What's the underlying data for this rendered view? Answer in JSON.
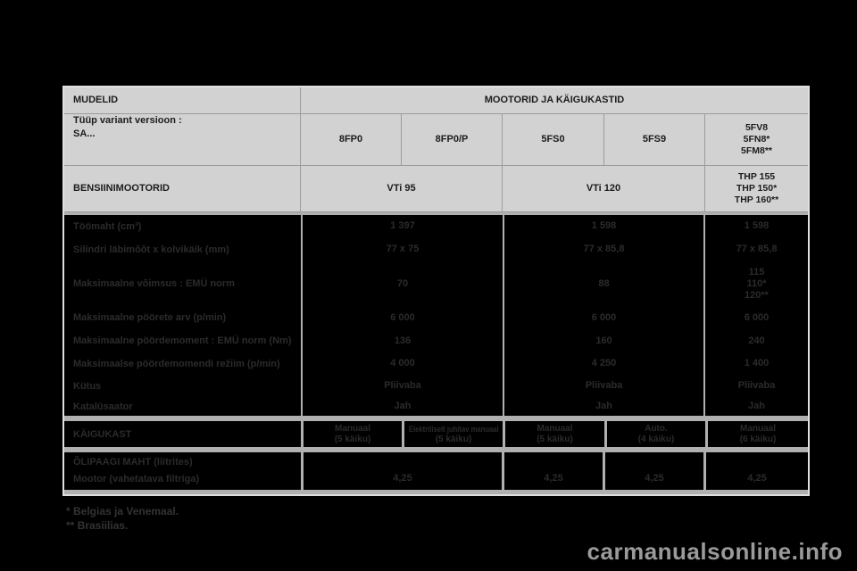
{
  "colors": {
    "page_bg": "#000000",
    "header_cell_bg": "#d2d2d2",
    "grid_line": "#9b9b9b",
    "separator_band": "#b0b0b0",
    "header_text": "#1c1c1c",
    "body_text": "#2b2b2b",
    "watermark_text": "#9a9a9a"
  },
  "table": {
    "header": {
      "models_label": "MUDELID",
      "engines_gearboxes_label": "MOOTORID JA KÄIGUKASTID",
      "type_variant_label": "Tüüp variant versioon :",
      "type_variant_sub": "SA...",
      "variant_codes": [
        "8FP0",
        "8FP0/P",
        "5FS0",
        "5FS9"
      ],
      "variant_codes_multi": [
        "5FV8",
        "5FN8*",
        "5FM8**"
      ],
      "petrol_label": "BENSIINIMOOTORID",
      "engine_names": [
        "VTi 95",
        "VTi 120"
      ],
      "engine_names_multi": [
        "THP 155",
        "THP 150*",
        "THP 160**"
      ]
    },
    "spec_rows": [
      {
        "label": "Töömaht (cm³)",
        "vti95": "1 397",
        "vti120": "1 598",
        "thp": [
          "1 598"
        ]
      },
      {
        "label": "Silindri läbimõõt x kolvikäik (mm)",
        "vti95": "77 x 75",
        "vti120": "77 x 85,8",
        "thp": [
          "77 x 85,8"
        ]
      },
      {
        "label": "Maksimaalne võimsus : EMÜ norm",
        "vti95": "70",
        "vti120": "88",
        "thp": [
          "115",
          "110*",
          "120**"
        ]
      },
      {
        "label": "Maksimaalne pöörete arv (p/min)",
        "vti95": "6 000",
        "vti120": "6 000",
        "thp": [
          "6 000"
        ]
      },
      {
        "label": "Maksimaalne pöördemoment : EMÜ norm (Nm)",
        "vti95": "136",
        "vti120": "160",
        "thp": [
          "240"
        ]
      },
      {
        "label": "Maksimaalse pöördemomendi režiim (p/min)",
        "vti95": "4 000",
        "vti120": "4 250",
        "thp": [
          "1 400"
        ]
      },
      {
        "label": "Kütus",
        "vti95": "Pliivaba",
        "vti120": "Pliivaba",
        "thp": [
          "Pliivaba"
        ]
      },
      {
        "label": "Katalüsaator",
        "vti95": "Jah",
        "vti120": "Jah",
        "thp": [
          "Jah"
        ]
      }
    ],
    "gearbox": {
      "label": "KÄIGUKAST",
      "cells": [
        [
          "Manuaal",
          "(5 käiku)"
        ],
        [
          "Elektriliselt juhitav manuaal",
          "(5 käiku)"
        ],
        [
          "Manuaal",
          "(5 käiku)"
        ],
        [
          "Auto.",
          "(4 käiku)"
        ],
        [
          "Manuaal",
          "(6 käiku)"
        ]
      ]
    },
    "oil": {
      "title": "ÕLIPAAGI MAHT (liitrites)",
      "row_label": "Mootor (vahetatava filtriga)",
      "values": [
        "4,25",
        "4,25",
        "4,25",
        "4,25"
      ]
    }
  },
  "footnotes": [
    "* Belgias ja Venemaal.",
    "** Brasiilias."
  ],
  "watermark": {
    "text": "carmanualsonline.info"
  }
}
